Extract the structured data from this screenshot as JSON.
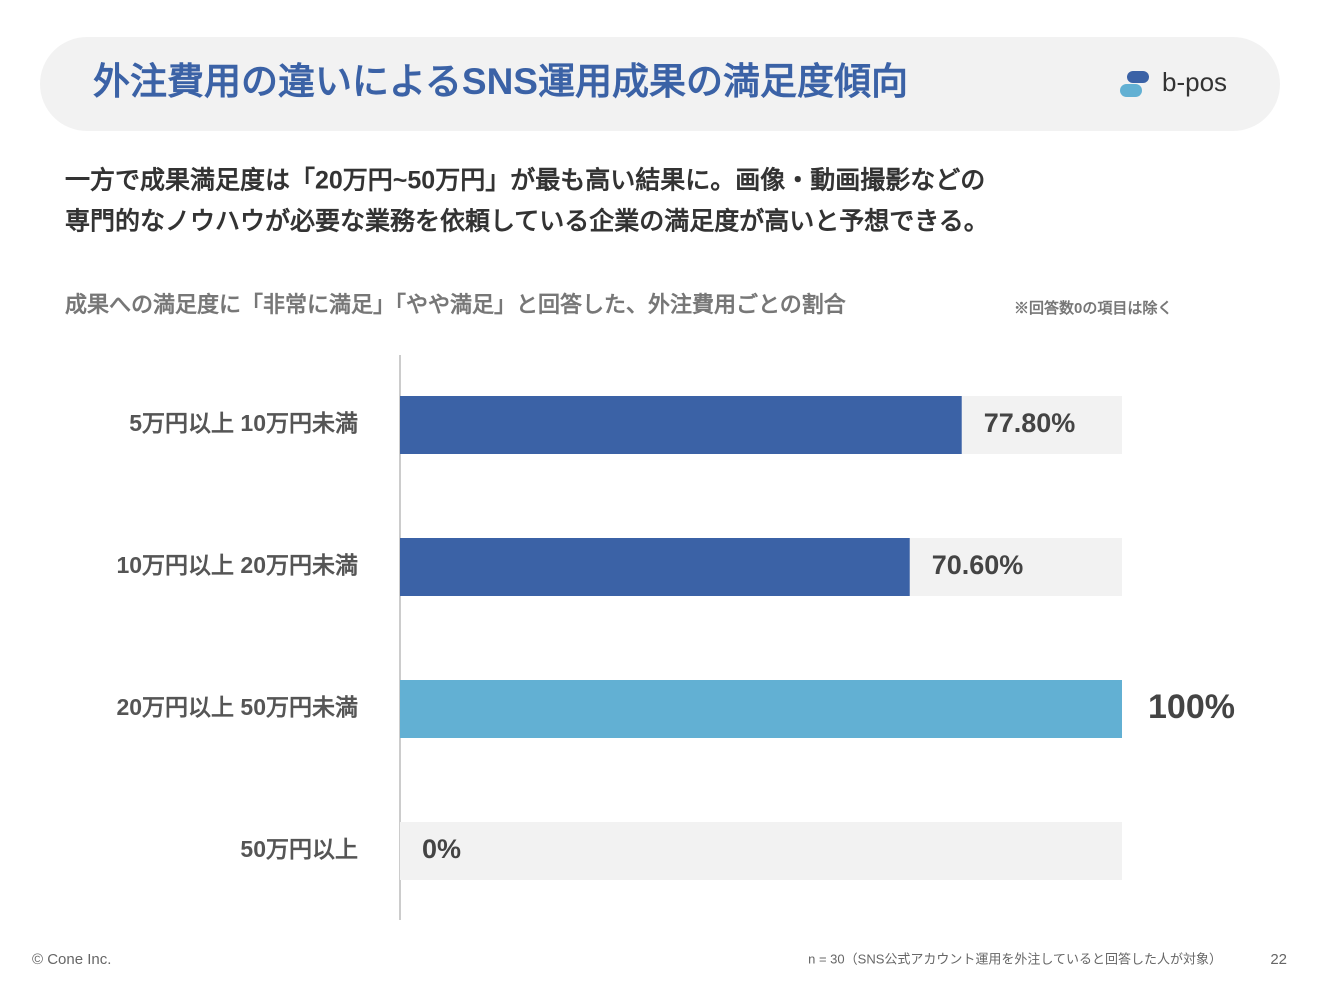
{
  "header": {
    "title": "外注費用の違いによるSNS運用成果の満足度傾向",
    "logo": "b-pos"
  },
  "lead": [
    "一方で成果満足度は「20万円~50万円」が最も高い結果に。画像・動画撮影などの",
    "専門的なノウハウが必要な業務を依頼している企業の満足度が高いと予想できる。"
  ],
  "chart_data": {
    "type": "bar",
    "orientation": "horizontal",
    "subtitle": "成果への満足度に「非常に満足」「やや満足」と回答した、外注費用ごとの割合",
    "note": "※回答数0の項目は除く",
    "categories": [
      "5万円以上 10万円未満",
      "10万円以上 20万円未満",
      "20万円以上 50万円未満",
      "50万円以上"
    ],
    "values": [
      77.8,
      70.6,
      100,
      0
    ],
    "value_labels": [
      "77.80%",
      "70.60%",
      "100%",
      "0%"
    ],
    "colors": [
      "#3b62a6",
      "#3b62a6",
      "#62b0d3",
      "#3b62a6"
    ],
    "track_color": "#f2f2f2",
    "xlim": [
      0,
      100
    ]
  },
  "footer": {
    "copyright": "© Cone Inc.",
    "sample": "n = 30（SNS公式アカウント運用を外注していると回答した人が対象）",
    "page": "22"
  }
}
